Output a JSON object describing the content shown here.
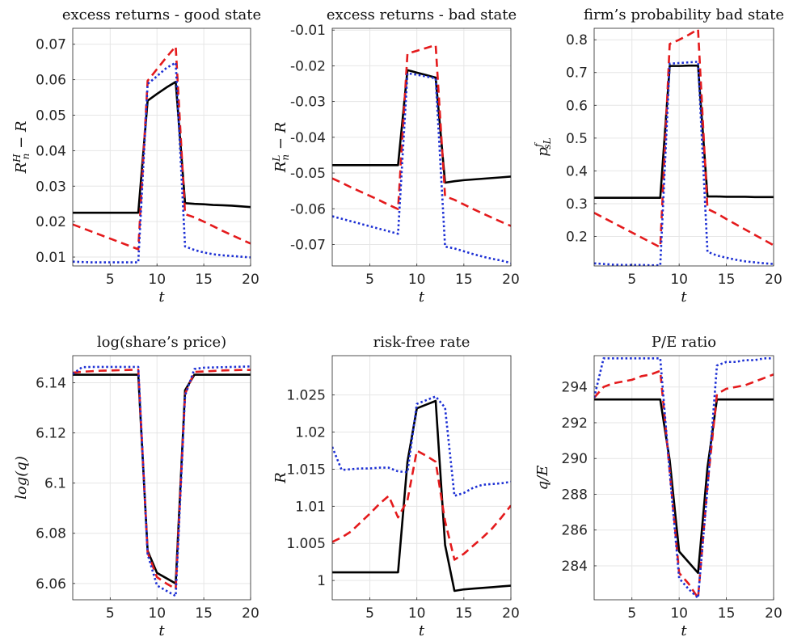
{
  "chart_data": [
    {
      "type": "line",
      "title": "excess returns - good state",
      "xlabel": "t",
      "ylabel": "R_n^H − R",
      "xlim": [
        1,
        20
      ],
      "ylim": [
        0.0075,
        0.0745
      ],
      "xticks": [
        5,
        10,
        15,
        20
      ],
      "yticks": [
        0.01,
        0.02,
        0.03,
        0.04,
        0.05,
        0.06,
        0.07
      ],
      "ytick_labels": [
        "0.01",
        "0.02",
        "0.03",
        "0.04",
        "0.05",
        "0.06",
        "0.07"
      ],
      "grid": true,
      "x": [
        1,
        2,
        3,
        4,
        5,
        6,
        7,
        8,
        9,
        10,
        11,
        12,
        13,
        14,
        15,
        16,
        17,
        18,
        19,
        20
      ],
      "series": [
        {
          "color": "#000000",
          "style": "solid",
          "values": [
            0.0225,
            0.0225,
            0.0225,
            0.0225,
            0.0225,
            0.0225,
            0.0225,
            0.0225,
            0.0541,
            0.056,
            0.0578,
            0.0594,
            0.0252,
            0.025,
            0.0249,
            0.0247,
            0.0246,
            0.0245,
            0.0243,
            0.0241
          ]
        },
        {
          "color": "#e41a1c",
          "style": "dashed",
          "values": [
            0.0192,
            0.0182,
            0.0172,
            0.0162,
            0.0152,
            0.0142,
            0.0132,
            0.0122,
            0.0597,
            0.063,
            0.0663,
            0.0694,
            0.0221,
            0.0212,
            0.02,
            0.0187,
            0.0174,
            0.0162,
            0.015,
            0.0138
          ]
        },
        {
          "color": "#1c2fd4",
          "style": "dotted",
          "values": [
            0.0087,
            0.0086,
            0.0085,
            0.0085,
            0.0085,
            0.0085,
            0.0085,
            0.0085,
            0.0588,
            0.061,
            0.0633,
            0.0648,
            0.013,
            0.012,
            0.0113,
            0.0108,
            0.0105,
            0.0103,
            0.0101,
            0.0099
          ]
        }
      ]
    },
    {
      "type": "line",
      "title": "excess returns - bad state",
      "xlabel": "t",
      "ylabel": "R_n^L − R",
      "xlim": [
        1,
        20
      ],
      "ylim": [
        -0.076,
        -0.0095
      ],
      "xticks": [
        5,
        10,
        15,
        20
      ],
      "yticks": [
        -0.07,
        -0.06,
        -0.05,
        -0.04,
        -0.03,
        -0.02,
        -0.01
      ],
      "ytick_labels": [
        "-0.07",
        "-0.06",
        "-0.05",
        "-0.04",
        "-0.03",
        "-0.02",
        "-0.01"
      ],
      "grid": true,
      "x": [
        1,
        2,
        3,
        4,
        5,
        6,
        7,
        8,
        9,
        10,
        11,
        12,
        13,
        14,
        15,
        16,
        17,
        18,
        19,
        20
      ],
      "series": [
        {
          "color": "#000000",
          "style": "solid",
          "values": [
            -0.0478,
            -0.0478,
            -0.0478,
            -0.0478,
            -0.0478,
            -0.0478,
            -0.0478,
            -0.0478,
            -0.0212,
            -0.0219,
            -0.0226,
            -0.0233,
            -0.0527,
            -0.0523,
            -0.052,
            -0.0518,
            -0.0516,
            -0.0514,
            -0.0512,
            -0.051
          ]
        },
        {
          "color": "#e41a1c",
          "style": "dashed",
          "values": [
            -0.0515,
            -0.0527,
            -0.054,
            -0.0552,
            -0.0564,
            -0.0576,
            -0.0589,
            -0.0601,
            -0.0166,
            -0.0158,
            -0.015,
            -0.0142,
            -0.0565,
            -0.0575,
            -0.0588,
            -0.0601,
            -0.0613,
            -0.0625,
            -0.0637,
            -0.0648
          ]
        },
        {
          "color": "#1c2fd4",
          "style": "dotted",
          "values": [
            -0.0621,
            -0.0628,
            -0.0635,
            -0.0642,
            -0.0649,
            -0.0656,
            -0.0663,
            -0.067,
            -0.0221,
            -0.0225,
            -0.023,
            -0.0235,
            -0.0706,
            -0.0711,
            -0.0719,
            -0.0727,
            -0.0734,
            -0.074,
            -0.0745,
            -0.0752
          ]
        }
      ]
    },
    {
      "type": "line",
      "title": "firm’s probability bad state",
      "xlabel": "t",
      "ylabel": "p_{sL}^f",
      "xlim": [
        1,
        20
      ],
      "ylim": [
        0.11,
        0.835
      ],
      "xticks": [
        5,
        10,
        15,
        20
      ],
      "yticks": [
        0.2,
        0.3,
        0.4,
        0.5,
        0.6,
        0.7,
        0.8
      ],
      "ytick_labels": [
        "0.2",
        "0.3",
        "0.4",
        "0.5",
        "0.6",
        "0.7",
        "0.8"
      ],
      "grid": true,
      "x": [
        1,
        2,
        3,
        4,
        5,
        6,
        7,
        8,
        9,
        10,
        11,
        12,
        13,
        14,
        15,
        16,
        17,
        18,
        19,
        20
      ],
      "series": [
        {
          "color": "#000000",
          "style": "solid",
          "values": [
            0.318,
            0.318,
            0.318,
            0.318,
            0.318,
            0.318,
            0.318,
            0.318,
            0.72,
            0.72,
            0.721,
            0.721,
            0.322,
            0.322,
            0.321,
            0.321,
            0.321,
            0.32,
            0.32,
            0.32
          ]
        },
        {
          "color": "#e41a1c",
          "style": "dashed",
          "values": [
            0.272,
            0.257,
            0.242,
            0.227,
            0.212,
            0.197,
            0.182,
            0.167,
            0.787,
            0.8,
            0.815,
            0.832,
            0.284,
            0.27,
            0.253,
            0.237,
            0.221,
            0.205,
            0.189,
            0.173
          ]
        },
        {
          "color": "#1c2fd4",
          "style": "dotted",
          "values": [
            0.118,
            0.116,
            0.114,
            0.113,
            0.113,
            0.113,
            0.112,
            0.112,
            0.727,
            0.729,
            0.731,
            0.733,
            0.153,
            0.142,
            0.135,
            0.129,
            0.124,
            0.121,
            0.118,
            0.116
          ]
        }
      ]
    },
    {
      "type": "line",
      "title": "log(share’s price)",
      "xlabel": "t",
      "ylabel": "log(q)",
      "xlim": [
        1,
        20
      ],
      "ylim": [
        6.0535,
        6.1508
      ],
      "xticks": [
        5,
        10,
        15,
        20
      ],
      "yticks": [
        6.06,
        6.08,
        6.1,
        6.12,
        6.14
      ],
      "ytick_labels": [
        "6.06",
        "6.08",
        "6.1",
        "6.12",
        "6.14"
      ],
      "grid": true,
      "x": [
        1,
        2,
        3,
        4,
        5,
        6,
        7,
        8,
        9,
        10,
        11,
        12,
        13,
        14,
        15,
        16,
        17,
        18,
        19,
        20
      ],
      "series": [
        {
          "color": "#000000",
          "style": "solid",
          "values": [
            6.1432,
            6.1432,
            6.1432,
            6.1432,
            6.1432,
            6.1432,
            6.1432,
            6.1432,
            6.073,
            6.0642,
            6.0621,
            6.06,
            6.137,
            6.1432,
            6.1432,
            6.1432,
            6.1432,
            6.1432,
            6.1432,
            6.1432
          ]
        },
        {
          "color": "#e41a1c",
          "style": "dashed",
          "values": [
            6.144,
            6.1444,
            6.1446,
            6.1448,
            6.1449,
            6.145,
            6.1451,
            6.1452,
            6.0723,
            6.0625,
            6.06,
            6.0578,
            6.1355,
            6.1443,
            6.1445,
            6.1447,
            6.1449,
            6.145,
            6.1451,
            6.1451
          ]
        },
        {
          "color": "#1c2fd4",
          "style": "dotted",
          "values": [
            6.1435,
            6.1462,
            6.1463,
            6.1463,
            6.1463,
            6.1463,
            6.1463,
            6.1463,
            6.0716,
            6.0592,
            6.0571,
            6.055,
            6.1349,
            6.1455,
            6.146,
            6.1461,
            6.1462,
            6.1463,
            6.1464,
            6.1465
          ]
        }
      ]
    },
    {
      "type": "line",
      "title": "risk-free rate",
      "xlabel": "t",
      "ylabel": "R",
      "xlim": [
        1,
        20
      ],
      "ylim": [
        0.9974,
        1.0303
      ],
      "xticks": [
        5,
        10,
        15,
        20
      ],
      "yticks": [
        1,
        1.005,
        1.01,
        1.015,
        1.02,
        1.025
      ],
      "ytick_labels": [
        "1",
        "1.005",
        "1.01",
        "1.015",
        "1.02",
        "1.025"
      ],
      "grid": true,
      "x": [
        1,
        2,
        3,
        4,
        5,
        6,
        7,
        8,
        9,
        10,
        11,
        12,
        13,
        14,
        15,
        16,
        17,
        18,
        19,
        20
      ],
      "series": [
        {
          "color": "#000000",
          "style": "solid",
          "values": [
            1.0011,
            1.0011,
            1.0011,
            1.0011,
            1.0011,
            1.0011,
            1.0011,
            1.0011,
            1.016,
            1.0232,
            1.0237,
            1.0242,
            1.0048,
            0.9986,
            0.9988,
            0.9989,
            0.999,
            0.9991,
            0.9992,
            0.9993
          ]
        },
        {
          "color": "#e41a1c",
          "style": "dashed",
          "values": [
            1.0052,
            1.0058,
            1.0066,
            1.0078,
            1.009,
            1.0103,
            1.0114,
            1.0085,
            1.0108,
            1.0175,
            1.0168,
            1.016,
            1.008,
            1.0028,
            1.0036,
            1.0047,
            1.0058,
            1.007,
            1.0085,
            1.0101
          ]
        },
        {
          "color": "#1c2fd4",
          "style": "dotted",
          "values": [
            1.018,
            1.0149,
            1.015,
            1.0151,
            1.0151,
            1.0152,
            1.0152,
            1.0147,
            1.0146,
            1.0238,
            1.0243,
            1.0248,
            1.0233,
            1.0114,
            1.0118,
            1.0125,
            1.0129,
            1.013,
            1.0131,
            1.0133
          ]
        }
      ]
    },
    {
      "type": "line",
      "title": "P/E ratio",
      "xlabel": "t",
      "ylabel": "q/E",
      "xlim": [
        1,
        20
      ],
      "ylim": [
        282.1,
        295.75
      ],
      "xticks": [
        5,
        10,
        15,
        20
      ],
      "yticks": [
        284,
        286,
        288,
        290,
        292,
        294
      ],
      "ytick_labels": [
        "284",
        "286",
        "288",
        "290",
        "292",
        "294"
      ],
      "grid": true,
      "x": [
        1,
        2,
        3,
        4,
        5,
        6,
        7,
        8,
        9,
        10,
        11,
        12,
        13,
        14,
        15,
        16,
        17,
        18,
        19,
        20
      ],
      "series": [
        {
          "color": "#000000",
          "style": "solid",
          "values": [
            293.3,
            293.3,
            293.3,
            293.3,
            293.3,
            293.3,
            293.3,
            293.3,
            289.9,
            284.8,
            284.2,
            283.6,
            289.5,
            293.3,
            293.3,
            293.3,
            293.3,
            293.3,
            293.3,
            293.3
          ]
        },
        {
          "color": "#e41a1c",
          "style": "dashed",
          "values": [
            293.4,
            294.0,
            294.2,
            294.3,
            294.4,
            294.6,
            294.7,
            294.9,
            289.3,
            283.6,
            283.0,
            282.2,
            288.5,
            293.6,
            293.9,
            294.0,
            294.1,
            294.3,
            294.5,
            294.7
          ]
        },
        {
          "color": "#1c2fd4",
          "style": "dotted",
          "values": [
            293.4,
            295.6,
            295.6,
            295.6,
            295.6,
            295.6,
            295.6,
            295.6,
            289.2,
            283.3,
            282.7,
            282.2,
            288.3,
            295.2,
            295.4,
            295.4,
            295.5,
            295.5,
            295.6,
            295.6
          ]
        }
      ]
    }
  ]
}
